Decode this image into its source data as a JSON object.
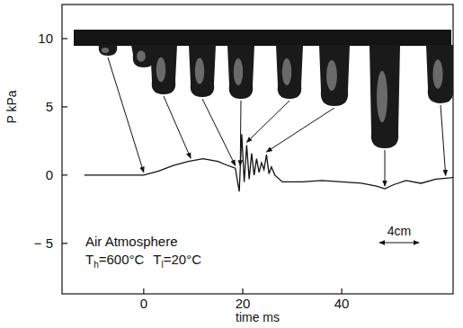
{
  "chart_data": {
    "type": "line",
    "x_label": "time ms",
    "y_label": "P kPa",
    "xlim": [
      -16.5,
      62.5
    ],
    "ylim": [
      -8.7,
      12.5
    ],
    "xticks": [
      0,
      20,
      40
    ],
    "yticks": [
      10,
      5,
      0,
      {
        "value": -5,
        "label": "− 5"
      }
    ],
    "x": [
      -12,
      -5,
      0,
      3,
      6,
      9,
      12,
      15,
      17,
      18.5,
      19.3,
      19.8,
      20.3,
      20.8,
      21.3,
      21.8,
      22.3,
      22.8,
      23.3,
      23.8,
      24.3,
      24.8,
      25.3,
      25.8,
      26.5,
      28,
      32,
      36,
      40,
      44,
      47,
      48.7,
      50.5,
      53,
      56,
      59,
      62,
      63.5
    ],
    "series": [
      {
        "name": "P",
        "color": "#111111",
        "values": [
          0,
          0,
          0,
          0.3,
          0.7,
          1.0,
          1.2,
          1.0,
          0.7,
          0.5,
          -1.2,
          3.0,
          -0.5,
          2.2,
          -0.3,
          1.6,
          0,
          1.2,
          0.2,
          0.9,
          0.4,
          1.5,
          0.1,
          0.6,
          0,
          -0.5,
          -0.5,
          -0.4,
          -0.5,
          -0.6,
          -0.8,
          -1.0,
          -0.7,
          -0.4,
          -0.6,
          -0.3,
          -0.2,
          -0.1
        ]
      }
    ],
    "frame_times": [
      0,
      9.5,
      18.5,
      19.5,
      20.8,
      24.8,
      48.7,
      61
    ],
    "annotations": [
      {
        "text": "Air Atmosphere"
      },
      {
        "parts": [
          {
            "base": "T",
            "sub": "h",
            "rest": "=600°C"
          },
          {
            "base": "T",
            "sub": "l",
            "rest": "=20°C"
          }
        ]
      }
    ],
    "scale_bar": {
      "label": "4cm"
    }
  }
}
